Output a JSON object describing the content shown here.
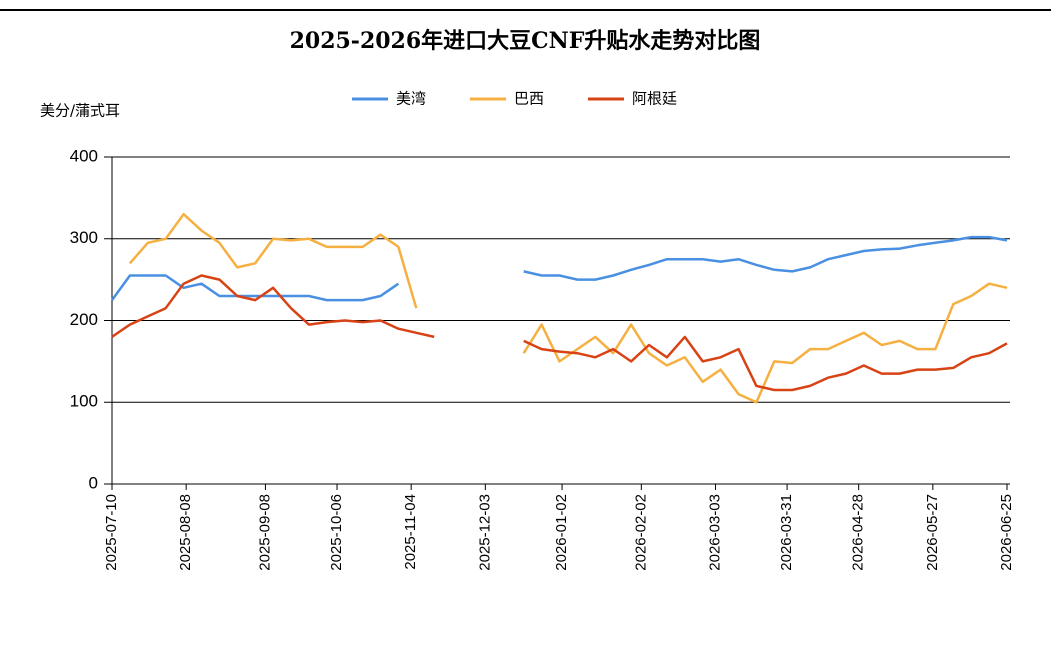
{
  "chart_data": {
    "type": "line",
    "title": "2025-2026年进口大豆CNF升贴水走势对比图",
    "y_label": "美分/蒲式耳",
    "x": [
      "2025-07-10",
      "2025-07-17",
      "2025-07-24",
      "2025-07-31",
      "2025-08-07",
      "2025-08-14",
      "2025-08-21",
      "2025-08-28",
      "2025-09-04",
      "2025-09-11",
      "2025-09-18",
      "2025-09-25",
      "2025-10-02",
      "2025-10-09",
      "2025-10-16",
      "2025-10-23",
      "2025-10-30",
      "2025-11-06",
      "2025-11-13",
      "2025-11-20",
      "2025-11-27",
      "2025-12-04",
      "2025-12-11",
      "2025-12-18",
      "2025-12-25",
      "2026-01-01",
      "2026-01-08",
      "2026-01-15",
      "2026-01-22",
      "2026-01-29",
      "2026-02-05",
      "2026-02-12",
      "2026-02-19",
      "2026-02-26",
      "2026-03-05",
      "2026-03-12",
      "2026-03-19",
      "2026-03-26",
      "2026-04-02",
      "2026-04-09",
      "2026-04-16",
      "2026-04-23",
      "2026-04-30",
      "2026-05-07",
      "2026-05-14",
      "2026-05-21",
      "2026-05-28",
      "2026-06-04",
      "2026-06-11",
      "2026-06-18",
      "2026-06-25"
    ],
    "series": [
      {
        "name": "美湾",
        "color": "#4a90e2",
        "values": [
          225,
          255,
          255,
          255,
          240,
          245,
          230,
          230,
          230,
          230,
          230,
          230,
          225,
          225,
          225,
          230,
          245,
          null,
          null,
          null,
          null,
          null,
          null,
          260,
          255,
          255,
          250,
          250,
          255,
          262,
          268,
          275,
          275,
          275,
          272,
          275,
          268,
          262,
          260,
          265,
          275,
          280,
          285,
          287,
          288,
          292,
          295,
          298,
          302,
          302,
          298
        ]
      },
      {
        "name": "巴西",
        "color": "#f5b041",
        "values": [
          null,
          270,
          295,
          300,
          330,
          310,
          295,
          265,
          270,
          300,
          298,
          300,
          290,
          290,
          290,
          305,
          290,
          215,
          null,
          null,
          null,
          null,
          null,
          160,
          195,
          150,
          165,
          180,
          160,
          195,
          160,
          145,
          155,
          125,
          140,
          110,
          100,
          150,
          148,
          165,
          165,
          175,
          185,
          170,
          175,
          165,
          165,
          220,
          230,
          245,
          240
        ]
      },
      {
        "name": "阿根廷",
        "color": "#d84315",
        "values": [
          180,
          195,
          205,
          215,
          245,
          255,
          250,
          230,
          225,
          240,
          215,
          195,
          198,
          200,
          198,
          200,
          190,
          185,
          180,
          null,
          null,
          null,
          null,
          175,
          165,
          162,
          160,
          155,
          165,
          150,
          170,
          155,
          180,
          150,
          155,
          165,
          120,
          115,
          115,
          120,
          130,
          135,
          145,
          135,
          135,
          140,
          140,
          142,
          155,
          160,
          172
        ]
      }
    ],
    "xlim": [
      "2025-07-10",
      "2026-06-25"
    ],
    "xticks": [
      "2025-07-10",
      "2025-08-08",
      "2025-09-08",
      "2025-10-06",
      "2025-11-04",
      "2025-12-03",
      "2026-01-02",
      "2026-02-02",
      "2026-03-03",
      "2026-03-31",
      "2026-04-28",
      "2026-05-27",
      "2026-06-25"
    ],
    "ylim": [
      0,
      400
    ],
    "yticks": [
      0,
      100,
      200,
      300,
      400
    ],
    "grid": true,
    "legend": "top"
  }
}
